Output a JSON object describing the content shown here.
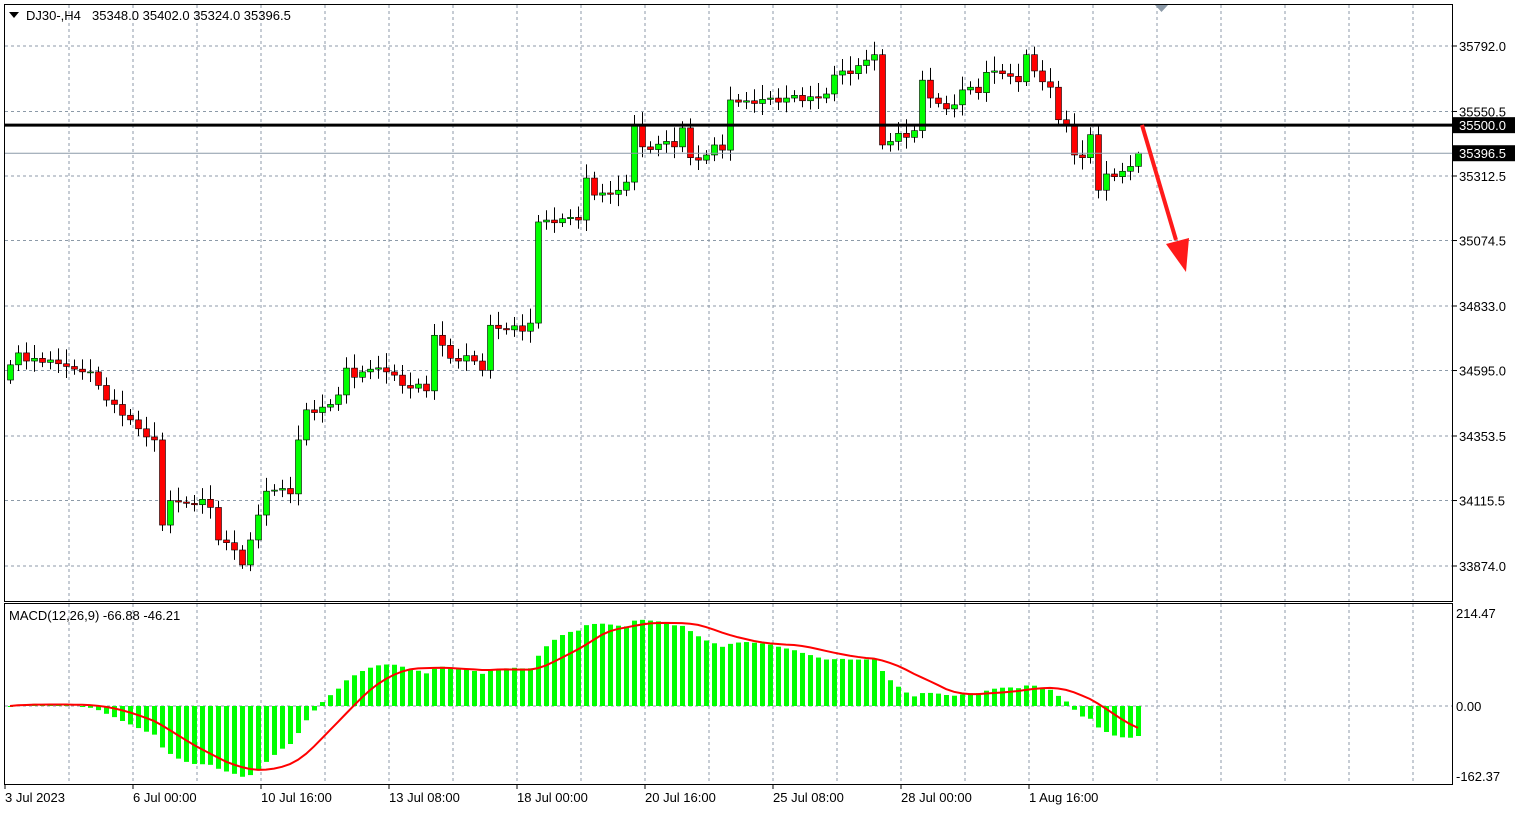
{
  "header": {
    "symbol": "DJ30-,H4",
    "ohlc_text": "35348.0 35402.0 35324.0 35396.5"
  },
  "colors": {
    "bull": "#00ff00",
    "bear": "#ff0000",
    "wick": "#000000",
    "grid": "#8c9aa8",
    "signal": "#ff0000",
    "histogram": "#00ff00",
    "arrow": "#ff1a1a"
  },
  "chart_data": [
    {
      "type": "candlestick",
      "timeframe": "H4",
      "ylim": [
        33800,
        35900
      ],
      "y_ticks": [
        "35792.0",
        "35550.5",
        "35312.5",
        "35074.5",
        "34833.0",
        "34595.0",
        "34353.5",
        "34115.5",
        "33874.0"
      ],
      "y_tick_values": [
        35792.0,
        35550.5,
        35312.5,
        35074.5,
        34833.0,
        34595.0,
        34353.5,
        34115.5,
        33874.0
      ],
      "x_ticks": [
        "3 Jul 2023",
        "6 Jul 00:00",
        "10 Jul 16:00",
        "13 Jul 08:00",
        "18 Jul 00:00",
        "20 Jul 16:00",
        "25 Jul 08:00",
        "28 Jul 00:00",
        "1 Aug 16:00"
      ],
      "horizontal_line": {
        "value": 35500.0,
        "label": "35500.0"
      },
      "current_price": {
        "value": 35396.5,
        "label": "35396.5"
      },
      "last_bar": {
        "open": 35348.0,
        "high": 35402.0,
        "low": 35324.0,
        "close": 35396.5
      },
      "annotation": "red downward arrow",
      "grid": true,
      "closes": [
        34616,
        34660,
        34630,
        34640,
        34625,
        34634,
        34620,
        34610,
        34600,
        34590,
        34590,
        34540,
        34486,
        34470,
        34430,
        34413,
        34380,
        34350,
        34339,
        34025,
        34115,
        34110,
        34105,
        34100,
        34120,
        34090,
        33970,
        33960,
        33933,
        33878,
        33970,
        34062,
        34150,
        34154,
        34160,
        34140,
        34339,
        34450,
        34440,
        34460,
        34470,
        34505,
        34604,
        34570,
        34590,
        34600,
        34605,
        34590,
        34578,
        34540,
        34530,
        34545,
        34520,
        34725,
        34688,
        34640,
        34630,
        34650,
        34630,
        34596,
        34762,
        34750,
        34745,
        34760,
        34740,
        34770,
        35143,
        35150,
        35140,
        35155,
        35160,
        35150,
        35305,
        35242,
        35250,
        35245,
        35260,
        35290,
        35500,
        35420,
        35410,
        35430,
        35440,
        35420,
        35490,
        35380,
        35371,
        35390,
        35427,
        35408,
        35593,
        35585,
        35590,
        35580,
        35595,
        35600,
        35585,
        35600,
        35610,
        35590,
        35605,
        35600,
        35615,
        35685,
        35700,
        35690,
        35720,
        35740,
        35760,
        35427,
        35440,
        35470,
        35455,
        35480,
        35666,
        35600,
        35580,
        35560,
        35575,
        35630,
        35640,
        35620,
        35695,
        35700,
        35690,
        35680,
        35660,
        35760,
        35700,
        35660,
        35640,
        35520,
        35500,
        35390,
        35380,
        35465,
        35260,
        35320,
        35310,
        35330,
        35348,
        35396.5
      ]
    },
    {
      "type": "bar+line",
      "indicator": "MACD",
      "label": "MACD(12,26,9) -66.88 -46.21",
      "params": [
        12,
        26,
        9
      ],
      "main_last": -66.88,
      "signal_last": -46.21,
      "ylim": [
        -162.37,
        214.47
      ],
      "y_ticks": [
        "214.47",
        "0.00",
        "-162.37"
      ],
      "y_tick_values": [
        214.47,
        0,
        -162.37
      ]
    }
  ]
}
